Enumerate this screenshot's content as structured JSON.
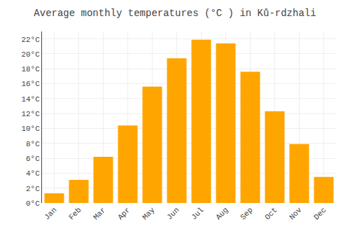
{
  "chart_data": {
    "type": "bar",
    "title": "Average monthly temperatures (°C ) in Ků-rdzhali",
    "categories": [
      "Jan",
      "Feb",
      "Mar",
      "Apr",
      "May",
      "Jun",
      "Jul",
      "Aug",
      "Sep",
      "Oct",
      "Nov",
      "Dec"
    ],
    "values": [
      1.3,
      3.1,
      6.2,
      10.4,
      15.6,
      19.4,
      21.9,
      21.4,
      17.6,
      12.3,
      7.9,
      3.5
    ],
    "color": "#FFA500",
    "ylim": [
      0,
      23
    ],
    "yticks": [
      {
        "value": 0,
        "label": "0°C"
      },
      {
        "value": 2,
        "label": "2°C"
      },
      {
        "value": 4,
        "label": "4°C"
      },
      {
        "value": 6,
        "label": "6°C"
      },
      {
        "value": 8,
        "label": "8°C"
      },
      {
        "value": 10,
        "label": "10°C"
      },
      {
        "value": 12,
        "label": "12°C"
      },
      {
        "value": 14,
        "label": "14°C"
      },
      {
        "value": 16,
        "label": "16°C"
      },
      {
        "value": 18,
        "label": "18°C"
      },
      {
        "value": 20,
        "label": "20°C"
      },
      {
        "value": 22,
        "label": "22°C"
      }
    ],
    "grid": true
  }
}
